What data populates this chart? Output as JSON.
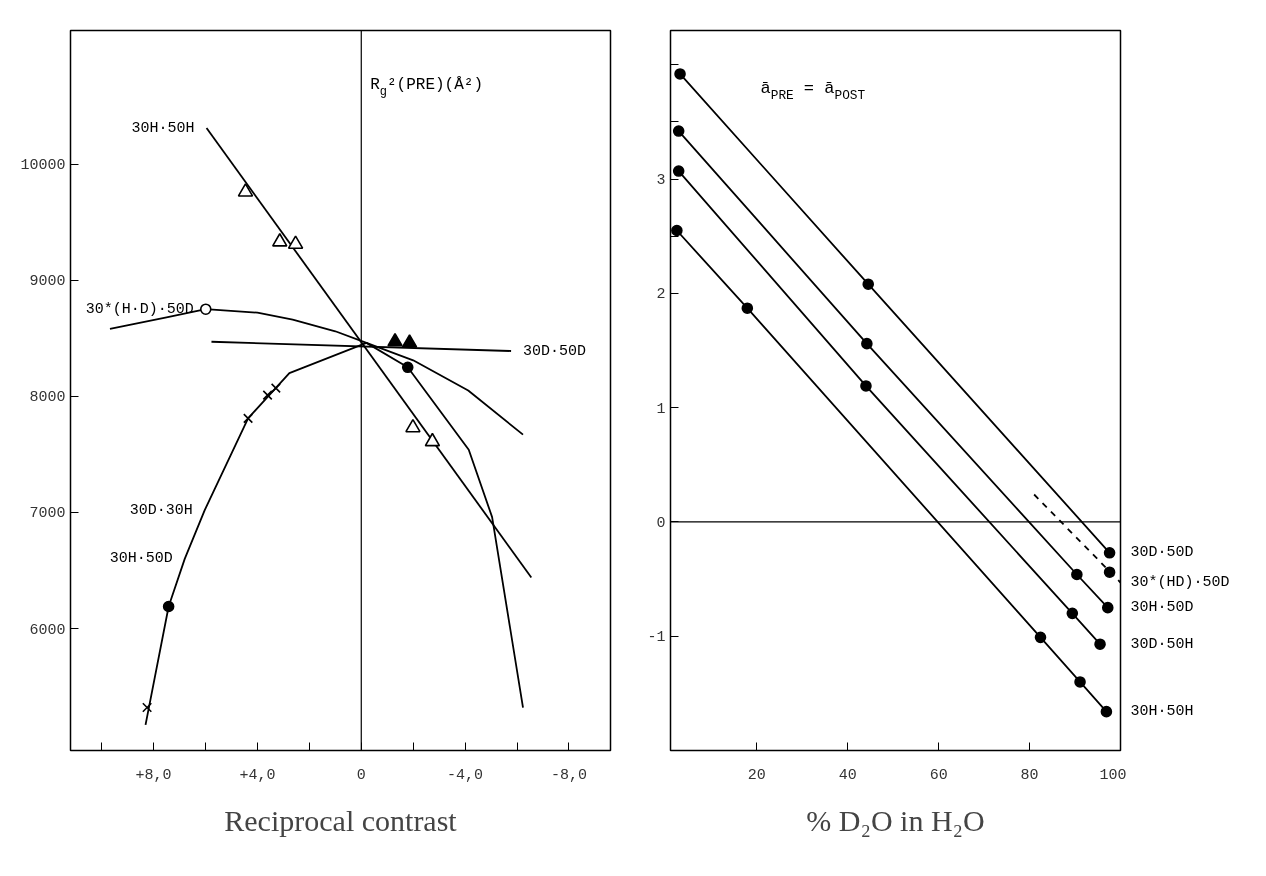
{
  "chart_data": [
    {
      "type": "scatter",
      "xlabel": "Reciprocal contrast",
      "ylabel": "R$_{g}$²(PRE)(Å²)",
      "xlim": [
        11.2,
        -9.6
      ],
      "ylim": [
        4950,
        11150
      ],
      "xticks": [
        {
          "value": 10,
          "label": null
        },
        {
          "value": 8,
          "label": "+8,0"
        },
        {
          "value": 6,
          "label": null
        },
        {
          "value": 4,
          "label": "+4,0"
        },
        {
          "value": 2,
          "label": null
        },
        0,
        {
          "value": -2,
          "label": null
        },
        {
          "value": -4,
          "label": "-4,0"
        },
        {
          "value": -6,
          "label": null
        },
        {
          "value": -8,
          "label": "-8,0"
        }
      ],
      "yticks": [
        6000,
        7000,
        8000,
        9000,
        10000
      ],
      "grid": false,
      "ref_lines": [
        {
          "axis": "x",
          "value": 0
        }
      ],
      "annotations": [
        {
          "text": "30H·50H",
          "x": 5.96,
          "y": 10310
        },
        {
          "text": "30D·50D",
          "x": -5.77,
          "y": 8390
        },
        {
          "text": "30*(H·D)·50D",
          "x": 5.99,
          "y": 8750
        },
        {
          "text": "30D·30H",
          "x": 6.03,
          "y": 7020
        },
        {
          "text": "30H·50D",
          "x": 6.8,
          "y": 6600
        }
      ],
      "series": [
        {
          "type": "line",
          "color": "#000000",
          "marker": "none",
          "x": [
            5.96,
            -6.55
          ],
          "values": [
            10310,
            6440
          ]
        },
        {
          "type": "scatter",
          "color": "#ffffff",
          "marker": "triangle",
          "x": [
            4.46,
            3.14,
            2.53,
            -1.99,
            -2.74
          ],
          "values": [
            9760,
            9330,
            9310,
            7730,
            7610
          ]
        },
        {
          "type": "line",
          "color": "#000000",
          "marker": "none",
          "x": [
            5.77,
            -5.77
          ],
          "values": [
            8470,
            8390
          ]
        },
        {
          "type": "scatter",
          "color": "#000000",
          "marker": "triangle",
          "x": [
            -1.3,
            -1.86
          ],
          "values": [
            8470,
            8460
          ]
        },
        {
          "type": "line",
          "color": "#000000",
          "marker": "none",
          "x": [
            9.68,
            7.5,
            5.99,
            4,
            2.64,
            1,
            -0.2,
            -2,
            -4.12,
            -6.23
          ],
          "values": [
            8580,
            8680,
            8750,
            8720,
            8660,
            8560,
            8460,
            8310,
            8050,
            7670
          ]
        },
        {
          "type": "scatter",
          "color": "#ffffff",
          "marker": "circle",
          "x": [
            5.99
          ],
          "values": [
            8750
          ]
        },
        {
          "type": "line",
          "color": "#000000",
          "marker": "none",
          "x": [
            8.31,
            7.42,
            6.8,
            6.03,
            4.36,
            2.77,
            -0.2,
            -1.79,
            -4.14,
            -5.04,
            -6.23
          ],
          "values": [
            5170,
            6190,
            6600,
            7020,
            7810,
            8200,
            8460,
            8250,
            7540,
            6960,
            5320
          ]
        },
        {
          "type": "scatter",
          "color": "#000000",
          "marker": "cross",
          "x": [
            8.25,
            4.36,
            3.61,
            3.29
          ],
          "values": [
            5320,
            7810,
            8010,
            8070
          ]
        },
        {
          "type": "scatter",
          "color": "#000000",
          "marker": "circle",
          "x": [
            7.42,
            -1.79
          ],
          "values": [
            6190,
            8250
          ]
        }
      ]
    },
    {
      "type": "line",
      "xlabel": "% D₂O in H₂O",
      "xlim": [
        1,
        100
      ],
      "ylim": [
        -2.0,
        4.3
      ],
      "xticks": [
        20,
        40,
        60,
        80,
        100
      ],
      "yticks": [
        -1,
        0,
        1,
        2,
        {
          "value": 2.5,
          "label": null
        },
        3,
        {
          "value": 3.5,
          "label": null
        },
        {
          "value": 4,
          "label": null
        }
      ],
      "grid": false,
      "marker": "circle",
      "line_style": "solid",
      "ref_lines": [
        {
          "axis": "y",
          "value": 0
        }
      ],
      "annotations": [
        "ā$_{PRE}$ = ā$_{POST}$"
      ],
      "series": [
        {
          "name": "30D·50D",
          "color": "#000000",
          "x": [
            3.1,
            44.5,
            97.6
          ],
          "values": [
            3.92,
            2.08,
            -0.27
          ]
        },
        {
          "name": "30*(HD)·50D",
          "color": "#000000",
          "line_style": "dashed",
          "marker": "none",
          "x": [
            81,
            100
          ],
          "values": [
            0.24,
            -0.53
          ]
        },
        {
          "type": "scatter",
          "color": "#000000",
          "x": [
            97.6
          ],
          "values": [
            -0.44
          ]
        },
        {
          "name": "30H·50D",
          "color": "#000000",
          "x": [
            2.8,
            44.2,
            90.4,
            97.2
          ],
          "values": [
            3.42,
            1.56,
            -0.46,
            -0.75
          ]
        },
        {
          "name": "30D·50H",
          "color": "#000000",
          "x": [
            2.8,
            44.0,
            89.4,
            95.5
          ],
          "values": [
            3.07,
            1.19,
            -0.8,
            -1.07
          ]
        },
        {
          "name": "30H·50H",
          "color": "#000000",
          "x": [
            2.4,
            17.9,
            82.4,
            91.1,
            96.9
          ],
          "values": [
            2.55,
            1.87,
            -1.01,
            -1.4,
            -1.66
          ]
        }
      ]
    }
  ]
}
